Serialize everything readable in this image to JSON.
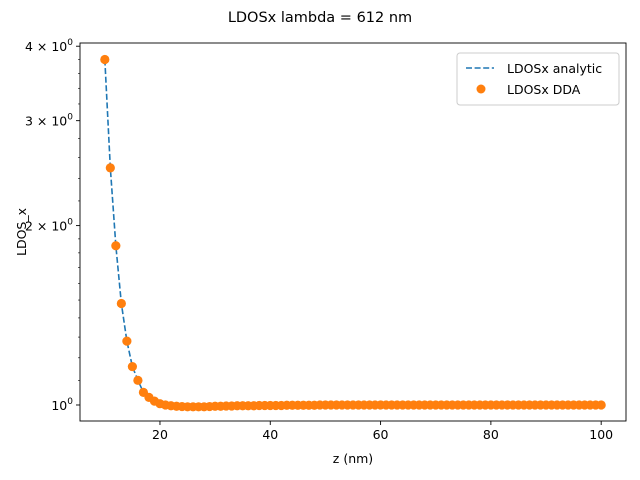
{
  "chart_data": {
    "type": "line",
    "title": "LDOSx lambda = 612 nm",
    "xlabel": "z (nm)",
    "ylabel": "LDOS_x",
    "xlim": [
      5.5,
      104.5
    ],
    "ylim": [
      0.94,
      4.05
    ],
    "yscale": "log",
    "grid": false,
    "legend_position": "top-right",
    "x_ticks": [
      20,
      40,
      60,
      80,
      100
    ],
    "x_tick_labels": [
      "20",
      "40",
      "60",
      "80",
      "100"
    ],
    "y_ticks": [
      1,
      2,
      3,
      4
    ],
    "y_tick_labels": [
      {
        "base": "10",
        "exp": "0"
      },
      {
        "base": "2 × 10",
        "exp": "0"
      },
      {
        "base": "3 × 10",
        "exp": "0"
      },
      {
        "base": "4 × 10",
        "exp": "0"
      }
    ],
    "series": [
      {
        "name": "LDOSx analytic",
        "style": "dashed-line",
        "color": "#1f77b4",
        "x": [
          10,
          11,
          12,
          13,
          14,
          15,
          16,
          17,
          18,
          19,
          20,
          21,
          22,
          23,
          24,
          25,
          26,
          27,
          28,
          29,
          30,
          32,
          35,
          40,
          45,
          50,
          55,
          60,
          65,
          70,
          75,
          80,
          85,
          90,
          95,
          100
        ],
        "y": [
          3.8,
          2.5,
          1.85,
          1.48,
          1.28,
          1.16,
          1.1,
          1.05,
          1.03,
          1.015,
          1.005,
          1.0,
          0.997,
          0.995,
          0.994,
          0.993,
          0.993,
          0.993,
          0.993,
          0.994,
          0.995,
          0.996,
          0.997,
          0.998,
          0.999,
          1.0,
          1.0,
          1.0,
          1.0,
          1.0,
          1.0,
          1.0,
          1.0,
          1.0,
          1.0,
          1.0
        ]
      },
      {
        "name": "LDOSx DDA",
        "style": "markers",
        "color": "#ff7f0e",
        "x": [
          10,
          11,
          12,
          13,
          14,
          15,
          16,
          17,
          18,
          19,
          20,
          21,
          22,
          23,
          24,
          25,
          26,
          27,
          28,
          29,
          30,
          31,
          32,
          33,
          34,
          35,
          36,
          37,
          38,
          39,
          40,
          41,
          42,
          43,
          44,
          45,
          46,
          47,
          48,
          49,
          50,
          51,
          52,
          53,
          54,
          55,
          56,
          57,
          58,
          59,
          60,
          61,
          62,
          63,
          64,
          65,
          66,
          67,
          68,
          69,
          70,
          71,
          72,
          73,
          74,
          75,
          76,
          77,
          78,
          79,
          80,
          81,
          82,
          83,
          84,
          85,
          86,
          87,
          88,
          89,
          90,
          91,
          92,
          93,
          94,
          95,
          96,
          97,
          98,
          99,
          100
        ],
        "y": [
          3.8,
          2.5,
          1.85,
          1.48,
          1.28,
          1.16,
          1.1,
          1.05,
          1.03,
          1.015,
          1.005,
          1.0,
          0.997,
          0.995,
          0.994,
          0.993,
          0.993,
          0.993,
          0.993,
          0.994,
          0.995,
          0.995,
          0.996,
          0.996,
          0.997,
          0.997,
          0.997,
          0.997,
          0.998,
          0.998,
          0.998,
          0.998,
          0.998,
          0.999,
          0.999,
          0.999,
          0.999,
          0.999,
          0.999,
          1.0,
          1.0,
          1.0,
          1.0,
          1.0,
          1.0,
          1.0,
          1.0,
          1.0,
          1.0,
          1.0,
          1.0,
          1.0,
          1.0,
          1.0,
          1.0,
          1.0,
          1.0,
          1.0,
          1.0,
          1.0,
          1.0,
          1.0,
          1.0,
          1.0,
          1.0,
          1.0,
          1.0,
          1.0,
          1.0,
          1.0,
          1.0,
          1.0,
          1.0,
          1.0,
          1.0,
          1.0,
          1.0,
          1.0,
          1.0,
          1.0,
          1.0,
          1.0,
          1.0,
          1.0,
          1.0,
          1.0,
          1.0,
          1.0,
          1.0,
          1.0,
          1.0
        ]
      }
    ]
  }
}
